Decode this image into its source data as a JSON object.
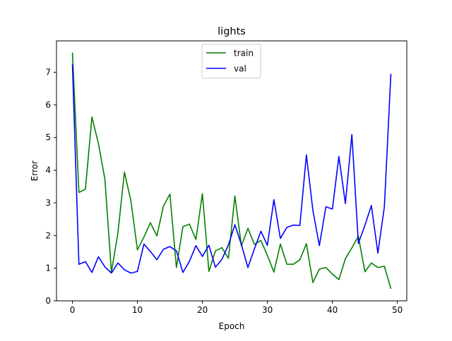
{
  "chart_data": {
    "type": "line",
    "title": "lights",
    "xlabel": "Epoch",
    "ylabel": "Error",
    "xlim": [
      -2.45,
      51.45
    ],
    "ylim": [
      0,
      7.96
    ],
    "xticks": [
      0,
      10,
      20,
      30,
      40,
      50
    ],
    "yticks": [
      0,
      1,
      2,
      3,
      4,
      5,
      6,
      7
    ],
    "grid": false,
    "legend_position": "top-center",
    "x": [
      0,
      1,
      2,
      3,
      4,
      5,
      6,
      7,
      8,
      9,
      10,
      11,
      12,
      13,
      14,
      15,
      16,
      17,
      18,
      19,
      20,
      21,
      22,
      23,
      24,
      25,
      26,
      27,
      28,
      29,
      30,
      31,
      32,
      33,
      34,
      35,
      36,
      37,
      38,
      39,
      40,
      41,
      42,
      43,
      44,
      45,
      46,
      47,
      48,
      49
    ],
    "series": [
      {
        "name": "train",
        "color": "#008000",
        "values": [
          7.6,
          3.32,
          3.42,
          5.63,
          4.82,
          3.72,
          0.88,
          2.08,
          3.94,
          3.06,
          1.56,
          1.95,
          2.39,
          1.99,
          2.9,
          3.27,
          1.02,
          2.27,
          2.35,
          1.88,
          3.28,
          0.9,
          1.53,
          1.63,
          1.3,
          3.21,
          1.68,
          2.22,
          1.73,
          1.85,
          1.39,
          0.88,
          1.74,
          1.12,
          1.12,
          1.26,
          1.75,
          0.56,
          0.97,
          1.02,
          0.82,
          0.65,
          1.29,
          1.62,
          1.98,
          0.89,
          1.16,
          1.02,
          1.06,
          0.37
        ]
      },
      {
        "name": "val",
        "color": "#0000ff",
        "values": [
          7.24,
          1.12,
          1.2,
          0.87,
          1.35,
          1.04,
          0.85,
          1.16,
          0.95,
          0.85,
          0.9,
          1.74,
          1.51,
          1.26,
          1.58,
          1.66,
          1.53,
          0.87,
          1.21,
          1.69,
          1.36,
          1.7,
          1.03,
          1.27,
          1.71,
          2.33,
          1.72,
          1.02,
          1.59,
          2.13,
          1.7,
          3.1,
          1.91,
          2.25,
          2.32,
          2.31,
          4.47,
          2.77,
          1.69,
          2.88,
          2.81,
          4.42,
          2.98,
          5.09,
          1.76,
          2.31,
          2.92,
          1.46,
          2.88,
          6.95
        ]
      }
    ]
  }
}
